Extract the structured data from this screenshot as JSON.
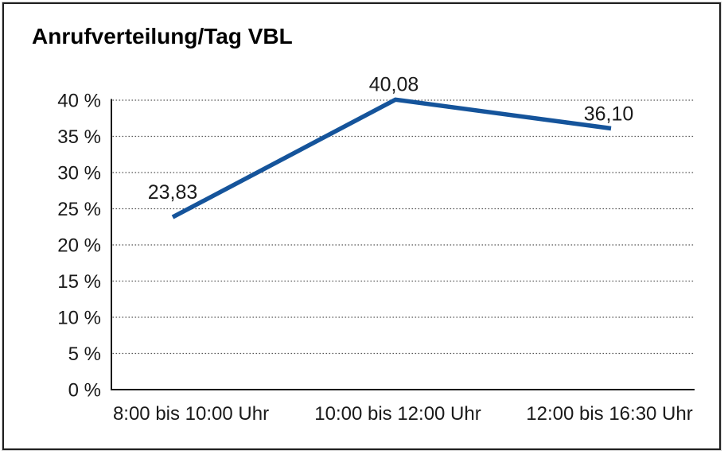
{
  "chart_data": {
    "type": "line",
    "title": "Anrufverteilung/Tag VBL",
    "categories": [
      "8:00 bis 10:00 Uhr",
      "10:00 bis 12:00 Uhr",
      "12:00 bis 16:30 Uhr"
    ],
    "values": [
      23.83,
      40.08,
      36.1
    ],
    "point_labels": [
      "23,83",
      "40,08",
      "36,10"
    ],
    "xlabel": "",
    "ylabel": "",
    "ylim": [
      0,
      40
    ],
    "yticks": [
      {
        "value": 0,
        "label": "0 %"
      },
      {
        "value": 5,
        "label": "5 %"
      },
      {
        "value": 10,
        "label": "10 %"
      },
      {
        "value": 15,
        "label": "15 %"
      },
      {
        "value": 20,
        "label": "20 %"
      },
      {
        "value": 25,
        "label": "25 %"
      },
      {
        "value": 30,
        "label": "30 %"
      },
      {
        "value": 35,
        "label": "35 %"
      },
      {
        "value": 40,
        "label": "40 %"
      }
    ],
    "grid": "horizontal-dotted",
    "legend": "none",
    "colors": {
      "line": "#15549b",
      "grid": "#565656",
      "axis": "#1a1a1a",
      "text": "#1a1a1a",
      "frame_border": "#1f1f1f",
      "background": "#ffffff"
    }
  }
}
